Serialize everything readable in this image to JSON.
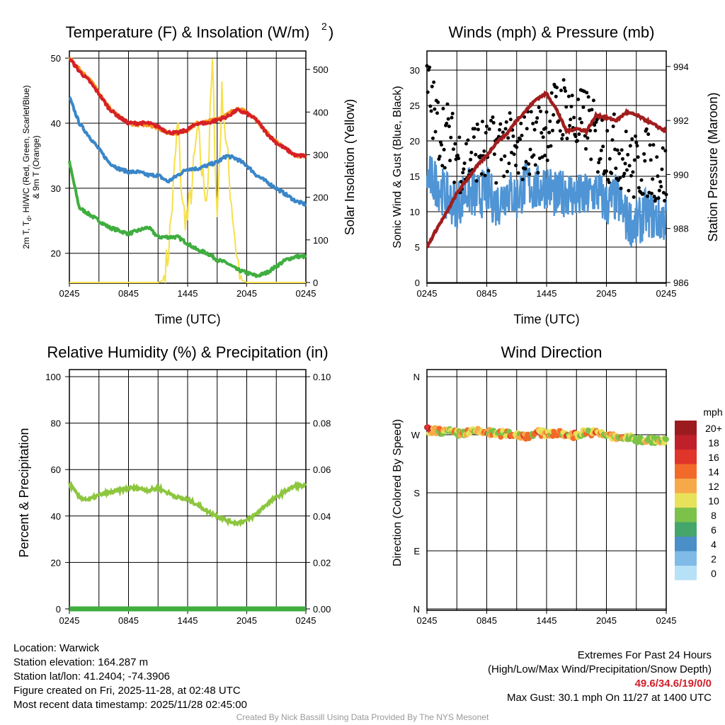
{
  "footer": {
    "location": "Location: Warwick",
    "elevation": "Station elevation: 164.287 m",
    "latlon": "Station lat/lon: 41.2404; -74.3906",
    "created": "Figure created on Fri, 2025-11-28, at 02:48 UTC",
    "recent": "Most recent data timestamp: 2025/11/28 02:45:00",
    "extremes_title": "Extremes For Past 24 Hours",
    "extremes_sub": "(High/Low/Max Wind/Precipitation/Snow Depth)",
    "extremes_values": "49.6/34.6/19/0/0",
    "max_gust": "Max Gust: 30.1 mph On 11/27 at 1400 UTC",
    "credit": "Created By Nick Bassill Using Data Provided By The NYS Mesonet"
  },
  "chart_data": [
    {
      "type": "line",
      "title": "Temperature (F) & Insolation (W/m²)",
      "xlabel": "Time (UTC)",
      "ylabel": "2m T, Td, HI/WC (Red, Green, Scarlet/Blue) & 9m T (Orange)",
      "ylabel_line1": "2m T, T",
      "ylabel_sub": "d",
      "ylabel_line1b": ", HI/WC (Red, Green, Scarlet/Blue)",
      "ylabel_line2": "& 9m T (Orange)",
      "y2label": "Solar Insolation (Yellow)",
      "xticks": [
        "0245",
        "0845",
        "1445",
        "2045",
        "0245"
      ],
      "yticks": [
        20,
        30,
        40,
        50
      ],
      "y2ticks": [
        0,
        100,
        200,
        300,
        400,
        500
      ],
      "ylim": [
        15.4,
        51.1
      ],
      "y2lim": [
        0,
        545
      ],
      "x_hours": "hourly from 0245 UTC, 25 points (solar half-hourly, 49 points)",
      "series": [
        {
          "name": "2m T",
          "color": "#d62027",
          "values": [
            50,
            48,
            46.5,
            44.5,
            42.3,
            41,
            40,
            40,
            40,
            39.5,
            38.6,
            38.5,
            39,
            40,
            40,
            40.5,
            41,
            42,
            41.5,
            40.5,
            38.5,
            37,
            36,
            35,
            35
          ]
        },
        {
          "name": "9m T",
          "color": "#f7941d",
          "values": [
            50,
            48.3,
            46.8,
            44.8,
            42.5,
            41,
            40,
            39.8,
            39.8,
            39.3,
            38.5,
            38.5,
            39,
            40,
            40.2,
            40.7,
            41.3,
            42.3,
            41.7,
            40.5,
            38.6,
            37.1,
            36,
            35,
            35
          ]
        },
        {
          "name": "HI/WC",
          "color": "#3a86c8",
          "values": [
            44,
            40,
            38,
            36,
            34,
            33,
            32.5,
            32.5,
            32,
            32,
            31,
            32,
            33,
            33,
            33.5,
            34,
            35,
            34.5,
            33.5,
            32,
            31,
            30,
            29,
            28,
            27.5
          ]
        },
        {
          "name": "Td",
          "color": "#3fae3f",
          "values": [
            34,
            27,
            26,
            25,
            24,
            23.5,
            23,
            23.5,
            24,
            22.5,
            22.5,
            22.5,
            21.5,
            20.5,
            20,
            19,
            18.5,
            17.5,
            17,
            16.5,
            17,
            18,
            19,
            19.5,
            19.5
          ]
        },
        {
          "name": "Solar",
          "color": "#f7e04a",
          "values": [
            0,
            0,
            0,
            0,
            0,
            0,
            0,
            0,
            0,
            0,
            0,
            0,
            0,
            0,
            0,
            0,
            0,
            0,
            0,
            5,
            60,
            200,
            380,
            170,
            150,
            240,
            360,
            250,
            200,
            520,
            150,
            450,
            300,
            180,
            60,
            5,
            0,
            0,
            0,
            0,
            0,
            0,
            0,
            0,
            0,
            0,
            0,
            0,
            0
          ]
        }
      ]
    },
    {
      "type": "line",
      "title": "Winds (mph) & Pressure (mb)",
      "xlabel": "Time (UTC)",
      "ylabel": "Sonic Wind & Gust (Blue, Black)",
      "y2label": "Station Pressure (Maroon)",
      "xticks": [
        "0245",
        "0845",
        "1445",
        "2045",
        "0245"
      ],
      "yticks": [
        0,
        5,
        10,
        15,
        20,
        25,
        30
      ],
      "y2ticks": [
        986,
        988,
        990,
        992,
        994
      ],
      "ylim": [
        0,
        32
      ],
      "y2lim": [
        986,
        994.6
      ],
      "series": [
        {
          "name": "Wind",
          "color": "#4f94d4",
          "values": [
            15,
            14,
            12,
            11,
            13,
            12,
            13,
            11,
            13,
            12,
            14,
            13,
            14,
            12,
            13,
            12,
            12,
            13,
            11,
            12,
            9,
            8,
            10,
            9,
            9
          ]
        },
        {
          "name": "Gust",
          "color": "#000000",
          "values": [
            28,
            22,
            21,
            18,
            17,
            19,
            18,
            19,
            20,
            17,
            20,
            20,
            22,
            24,
            25,
            22,
            23,
            20,
            19,
            19,
            17,
            16,
            17,
            16,
            15
          ]
        },
        {
          "name": "Pressure",
          "color": "#a01e1e",
          "values": [
            987.3,
            988,
            988.6,
            989.3,
            989.8,
            990.3,
            990.7,
            991.2,
            991.5,
            992,
            992.4,
            992.8,
            993,
            992.4,
            991.6,
            991.7,
            991.6,
            992.2,
            992.1,
            992,
            992.3,
            992.2,
            992,
            991.8,
            991.6
          ]
        }
      ]
    },
    {
      "type": "line",
      "title": "Relative Humidity (%) & Precipitation (in)",
      "ylabel": "Percent & Precipitation",
      "xticks": [
        "0245",
        "0845",
        "1445",
        "2045",
        "0245"
      ],
      "yticks": [
        0,
        20,
        40,
        60,
        80,
        100
      ],
      "y2ticks": [
        "0.00",
        "0.02",
        "0.04",
        "0.06",
        "0.08",
        "0.10"
      ],
      "ylim": [
        0,
        100
      ],
      "y2lim": [
        0,
        0.1
      ],
      "series": [
        {
          "name": "RH",
          "color": "#8dc63f",
          "values": [
            54,
            48,
            47,
            49,
            50,
            51,
            52,
            52,
            51,
            52,
            50,
            48,
            47,
            45,
            42,
            40,
            38,
            37,
            38,
            41,
            45,
            48,
            51,
            53,
            53
          ]
        },
        {
          "name": "Precipitation",
          "color": "#3fae3f",
          "values": [
            0,
            0,
            0,
            0,
            0,
            0,
            0,
            0,
            0,
            0,
            0,
            0,
            0,
            0,
            0,
            0,
            0,
            0,
            0,
            0,
            0,
            0,
            0,
            0,
            0
          ]
        }
      ]
    },
    {
      "type": "scatter",
      "title": "Wind Direction",
      "ylabel": "Direction (Colored By Speed)",
      "xticks": [
        "0245",
        "0845",
        "1445",
        "2045",
        "0245"
      ],
      "yticks": [
        "N",
        "E",
        "S",
        "W",
        "N"
      ],
      "ylim": [
        0,
        360
      ],
      "direction_deg": [
        277,
        276,
        275,
        272,
        273,
        275,
        274,
        271,
        272,
        270,
        268,
        273,
        272,
        272,
        270,
        269,
        275,
        272,
        270,
        265,
        266,
        262,
        262,
        261,
        260
      ],
      "legend_title": "mph",
      "legend": [
        "20+",
        "18",
        "16",
        "14",
        "12",
        "10",
        "8",
        "6",
        "4",
        "2",
        "0"
      ],
      "legend_colors": [
        "#9b1b1f",
        "#c0202a",
        "#e0352b",
        "#f26a2a",
        "#f7a94a",
        "#e8e15a",
        "#7cc24a",
        "#45a66b",
        "#4a8fc8",
        "#7fbbe6",
        "#b7e1f7"
      ],
      "legend_placement": "right"
    }
  ]
}
